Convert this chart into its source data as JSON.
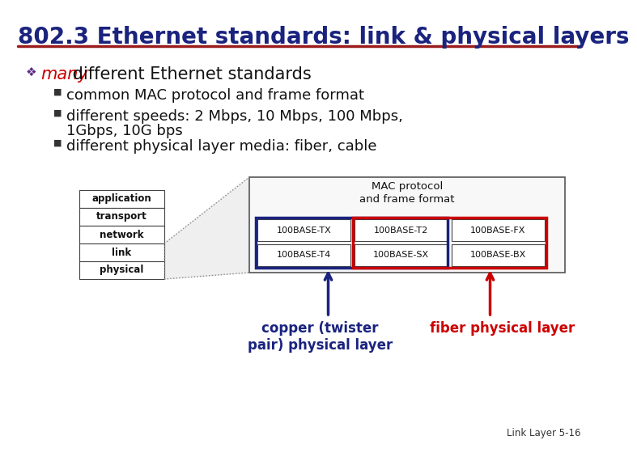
{
  "title": "802.3 Ethernet standards: link & physical layers",
  "title_color": "#1a237e",
  "title_fontsize": 20,
  "underline_color": "#9b1c1c",
  "bg_color": "#ffffff",
  "bullet_color": "#5b2d82",
  "bullet_fontsize": 15,
  "sub_bullet_fontsize": 13,
  "many_color": "#cc0000",
  "many_text": "many",
  "bullet1_text": " different Ethernet standards",
  "sub1": "common MAC protocol and frame format",
  "sub2a": "different speeds: 2 Mbps, 10 Mbps, 100 Mbps,",
  "sub2b": "1Gbps, 10G bps",
  "sub3": "different physical layer media: fiber, cable",
  "layers": [
    "application",
    "transport",
    "network",
    "link",
    "physical"
  ],
  "cells_row1": [
    "100BASE-TX",
    "100BASE-T2",
    "100BASE-FX"
  ],
  "cells_row2": [
    "100BASE-T4",
    "100BASE-SX",
    "100BASE-BX"
  ],
  "mac_label1": "MAC protocol",
  "mac_label2": "and frame format",
  "copper_label": "copper (twister\npair) physical layer",
  "fiber_label": "fiber physical layer",
  "copper_color": "#1a237e",
  "fiber_color": "#cc0000",
  "blue_box_color": "#1a237e",
  "red_box_color": "#cc0000",
  "footnote": "Link Layer 5-16",
  "dark_text": "#111111"
}
